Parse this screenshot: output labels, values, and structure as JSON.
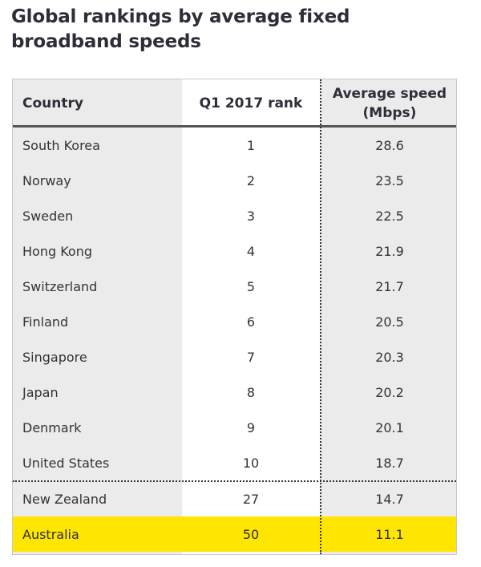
{
  "title_line1": "Global rankings by average fixed",
  "title_line2": "broadband speeds",
  "colors": {
    "highlight": "#ffe600",
    "table_bg": "#ebebeb",
    "rank_col_bg": "#ffffff"
  },
  "chart_data": {
    "type": "table",
    "title": "Global rankings by average fixed broadband speeds",
    "columns": [
      "Country",
      "Q1 2017 rank",
      "Average speed (Mbps)"
    ],
    "header": {
      "country": "Country",
      "rank": "Q1 2017 rank",
      "speed_line1": "Average speed",
      "speed_line2": "(Mbps)"
    },
    "rows": [
      {
        "country": "South Korea",
        "rank": "1",
        "speed": "28.6"
      },
      {
        "country": "Norway",
        "rank": "2",
        "speed": "23.5"
      },
      {
        "country": "Sweden",
        "rank": "3",
        "speed": "22.5"
      },
      {
        "country": "Hong Kong",
        "rank": "4",
        "speed": "21.9"
      },
      {
        "country": "Switzerland",
        "rank": "5",
        "speed": "21.7"
      },
      {
        "country": "Finland",
        "rank": "6",
        "speed": "20.5"
      },
      {
        "country": "Singapore",
        "rank": "7",
        "speed": "20.3"
      },
      {
        "country": "Japan",
        "rank": "8",
        "speed": "20.2"
      },
      {
        "country": "Denmark",
        "rank": "9",
        "speed": "20.1"
      },
      {
        "country": "United States",
        "rank": "10",
        "speed": "18.7"
      },
      {
        "country": "New Zealand",
        "rank": "27",
        "speed": "14.7"
      },
      {
        "country": "Australia",
        "rank": "50",
        "speed": "11.1",
        "highlighted": true
      }
    ]
  }
}
